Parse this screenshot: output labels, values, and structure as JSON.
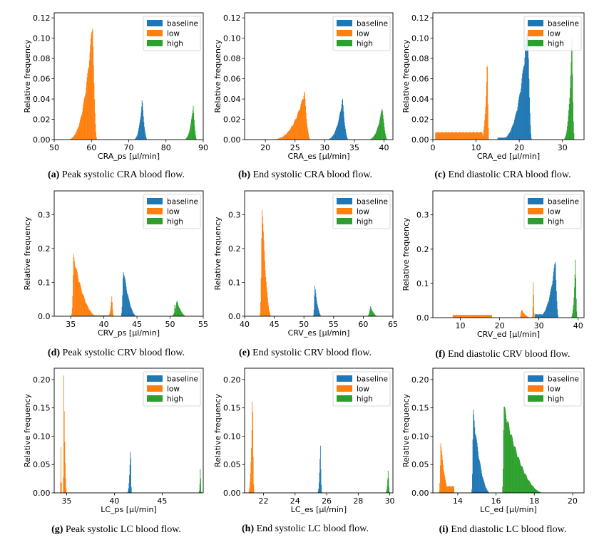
{
  "figure": {
    "legend_labels": [
      "baseline",
      "low",
      "high"
    ]
  },
  "colors": {
    "baseline": "#1f77b4",
    "low": "#ff7f0e",
    "high": "#2ca02c"
  },
  "chart_data": [
    {
      "id": "a",
      "type": "bar",
      "subtype": "histogram",
      "title": "",
      "xlabel": "CRA_ps [µl/min]",
      "ylabel": "Relative frequency",
      "caption_label": "(a)",
      "caption_text": "Peak systolic CRA blood flow.",
      "xlim": [
        50,
        90
      ],
      "ylim": [
        0,
        0.125
      ],
      "xticks": [
        50,
        60,
        70,
        80,
        90
      ],
      "yticks": [
        0.0,
        0.02,
        0.04,
        0.06,
        0.08,
        0.1,
        0.12
      ],
      "legend": "top-right",
      "series": [
        {
          "name": "baseline",
          "peaks": [
            {
              "start": 71.0,
              "center": 73.6,
              "end": 75.0,
              "height": 0.041
            }
          ]
        },
        {
          "name": "low",
          "peaks": [
            {
              "start": 53.0,
              "center": 60.3,
              "end": 61.5,
              "height": 0.122
            }
          ]
        },
        {
          "name": "high",
          "peaks": [
            {
              "start": 84.5,
              "center": 87.3,
              "end": 88.3,
              "height": 0.036
            }
          ]
        }
      ]
    },
    {
      "id": "b",
      "type": "bar",
      "subtype": "histogram",
      "title": "",
      "xlabel": "CRA_es [µl/min]",
      "ylabel": "Relative frequency",
      "caption_label": "(b)",
      "caption_text": "End systolic CRA blood flow.",
      "xlim": [
        16.5,
        41.5
      ],
      "ylim": [
        0,
        0.125
      ],
      "xticks": [
        20,
        25,
        30,
        35,
        40
      ],
      "yticks": [
        0.0,
        0.02,
        0.04,
        0.06,
        0.08,
        0.1,
        0.12
      ],
      "legend": "top-right",
      "series": [
        {
          "name": "baseline",
          "peaks": [
            {
              "start": 30.0,
              "center": 33.0,
              "end": 34.0,
              "height": 0.042
            }
          ]
        },
        {
          "name": "low",
          "peaks": [
            {
              "start": 20.5,
              "center": 26.6,
              "end": 27.6,
              "height": 0.049
            }
          ]
        },
        {
          "name": "high",
          "peaks": [
            {
              "start": 37.0,
              "center": 39.7,
              "end": 40.6,
              "height": 0.034
            }
          ]
        }
      ]
    },
    {
      "id": "c",
      "type": "bar",
      "subtype": "histogram",
      "title": "",
      "xlabel": "CRA_ed [µl/min]",
      "ylabel": "Relative frequency",
      "caption_label": "(c)",
      "caption_text": "End diastolic CRA blood flow.",
      "xlim": [
        0,
        35
      ],
      "ylim": [
        0,
        0.125
      ],
      "xticks": [
        0,
        10,
        20,
        30
      ],
      "yticks": [
        0.0,
        0.02,
        0.04,
        0.06,
        0.08,
        0.1,
        0.12
      ],
      "legend": "top-right",
      "series": [
        {
          "name": "baseline",
          "peaks": [
            {
              "start": 15.0,
              "center": 22.0,
              "end": 22.9,
              "height": 0.119
            }
          ],
          "plateau": {
            "start": 15.0,
            "end": 20.0,
            "height": 0.002
          }
        },
        {
          "name": "low",
          "peaks": [
            {
              "start": 11.0,
              "center": 12.6,
              "end": 13.0,
              "height": 0.085
            }
          ],
          "plateau": {
            "start": 0.5,
            "end": 11.5,
            "height": 0.0075
          }
        },
        {
          "name": "high",
          "peaks": [
            {
              "start": 30.0,
              "center": 32.2,
              "end": 32.8,
              "height": 0.104
            }
          ]
        }
      ]
    },
    {
      "id": "d",
      "type": "bar",
      "subtype": "histogram",
      "title": "",
      "xlabel": "CRV_ps [µl/min]",
      "ylabel": "Relative frequency",
      "caption_label": "(d)",
      "caption_text": "Peak systolic CRV blood flow.",
      "xlim": [
        32.5,
        55
      ],
      "ylim": [
        0,
        0.37
      ],
      "xticks": [
        35,
        40,
        45,
        50,
        55
      ],
      "yticks": [
        0.0,
        0.1,
        0.2,
        0.3
      ],
      "legend": "top-right",
      "series": [
        {
          "name": "baseline",
          "peaks": [
            {
              "start": 42.5,
              "center": 42.9,
              "end": 45.0,
              "height": 0.148
            }
          ]
        },
        {
          "name": "low",
          "peaks": [
            {
              "start": 35.0,
              "center": 35.4,
              "end": 39.0,
              "height": 0.185
            },
            {
              "start": 40.5,
              "center": 41.2,
              "end": 41.5,
              "height": 0.063
            }
          ],
          "plateau": {
            "start": 36.0,
            "end": 41.0,
            "height": 0.003
          }
        },
        {
          "name": "high",
          "peaks": [
            {
              "start": 50.0,
              "center": 51.0,
              "end": 52.5,
              "height": 0.048
            },
            {
              "start": 50.6,
              "center": 50.7,
              "end": 50.8,
              "height": 0.08
            }
          ]
        }
      ]
    },
    {
      "id": "e",
      "type": "bar",
      "subtype": "histogram",
      "title": "",
      "xlabel": "CRV_es [µl/min]",
      "ylabel": "Relative frequency",
      "caption_label": "(e)",
      "caption_text": "End systolic CRV blood flow.",
      "xlim": [
        40,
        65
      ],
      "ylim": [
        0,
        0.37
      ],
      "xticks": [
        40,
        45,
        50,
        55,
        60,
        65
      ],
      "yticks": [
        0.0,
        0.1,
        0.2,
        0.3
      ],
      "legend": "top-right",
      "series": [
        {
          "name": "baseline",
          "peaks": [
            {
              "start": 51.5,
              "center": 51.8,
              "end": 53.0,
              "height": 0.097
            }
          ]
        },
        {
          "name": "low",
          "peaks": [
            {
              "start": 42.5,
              "center": 42.9,
              "end": 44.5,
              "height": 0.36
            }
          ]
        },
        {
          "name": "high",
          "peaks": [
            {
              "start": 60.5,
              "center": 61.2,
              "end": 62.5,
              "height": 0.03
            }
          ]
        }
      ]
    },
    {
      "id": "f",
      "type": "bar",
      "subtype": "histogram",
      "title": "",
      "xlabel": "CRV_ed [µl/min]",
      "ylabel": "Relative frequency",
      "caption_label": "(f)",
      "caption_text": "End diastolic CRV blood flow.",
      "xlim": [
        3,
        41.5
      ],
      "ylim": [
        0,
        0.37
      ],
      "xticks": [
        10,
        20,
        30,
        40
      ],
      "yticks": [
        0.0,
        0.1,
        0.2,
        0.3
      ],
      "legend": "top-right",
      "series": [
        {
          "name": "baseline",
          "peaks": [
            {
              "start": 29.0,
              "center": 34.2,
              "end": 35.0,
              "height": 0.178
            }
          ],
          "plateau": {
            "start": 29.0,
            "end": 33.0,
            "height": 0.01
          }
        },
        {
          "name": "low",
          "peaks": [
            {
              "start": 25.0,
              "center": 25.5,
              "end": 28.0,
              "height": 0.025
            },
            {
              "start": 28.2,
              "center": 28.6,
              "end": 28.9,
              "height": 0.135
            }
          ],
          "plateau": {
            "start": 8.0,
            "end": 18.0,
            "height": 0.008
          }
        },
        {
          "name": "high",
          "peaks": [
            {
              "start": 38.0,
              "center": 39.3,
              "end": 39.8,
              "height": 0.18
            }
          ]
        }
      ]
    },
    {
      "id": "g",
      "type": "bar",
      "subtype": "histogram",
      "title": "",
      "xlabel": "LC_ps [µl/min]",
      "ylabel": "Relative frequency",
      "caption_label": "(g)",
      "caption_text": "Peak systolic LC blood flow.",
      "xlim": [
        33.7,
        49.3
      ],
      "ylim": [
        0,
        0.22
      ],
      "xticks": [
        35,
        40,
        45
      ],
      "yticks": [
        0.0,
        0.05,
        0.1,
        0.15,
        0.2
      ],
      "legend": "top-right",
      "series": [
        {
          "name": "baseline",
          "peaks": [
            {
              "start": 41.3,
              "center": 41.7,
              "end": 41.8,
              "height": 0.1
            }
          ]
        },
        {
          "name": "low",
          "peaks": [
            {
              "start": 34.3,
              "center": 34.4,
              "end": 34.5,
              "height": 0.1
            },
            {
              "start": 34.6,
              "center": 34.7,
              "end": 35.0,
              "height": 0.215
            }
          ]
        },
        {
          "name": "high",
          "peaks": [
            {
              "start": 48.8,
              "center": 49.0,
              "end": 49.1,
              "height": 0.057
            }
          ]
        }
      ]
    },
    {
      "id": "h",
      "type": "bar",
      "subtype": "histogram",
      "title": "",
      "xlabel": "LC_es [µl/min]",
      "ylabel": "Relative frequency",
      "caption_label": "(h)",
      "caption_text": "End systolic LC blood flow.",
      "xlim": [
        20.8,
        30.2
      ],
      "ylim": [
        0,
        0.22
      ],
      "xticks": [
        22,
        24,
        26,
        28,
        30
      ],
      "yticks": [
        0.0,
        0.05,
        0.1,
        0.15,
        0.2
      ],
      "legend": "top-right",
      "series": [
        {
          "name": "baseline",
          "peaks": [
            {
              "start": 25.4,
              "center": 25.6,
              "end": 25.7,
              "height": 0.097
            }
          ]
        },
        {
          "name": "low",
          "peaks": [
            {
              "start": 21.0,
              "center": 21.3,
              "end": 21.4,
              "height": 0.198
            }
          ]
        },
        {
          "name": "high",
          "peaks": [
            {
              "start": 29.7,
              "center": 29.9,
              "end": 30.0,
              "height": 0.045
            }
          ]
        }
      ]
    },
    {
      "id": "i",
      "type": "bar",
      "subtype": "histogram",
      "title": "",
      "xlabel": "LC_ed [µl/min]",
      "ylabel": "Relative frequency",
      "caption_label": "(i)",
      "caption_text": "End diastolic LC blood flow.",
      "xlim": [
        12.7,
        20.6
      ],
      "ylim": [
        0,
        0.22
      ],
      "xticks": [
        14,
        16,
        18,
        20
      ],
      "yticks": [
        0.0,
        0.05,
        0.1,
        0.15,
        0.2
      ],
      "legend": "top-right",
      "series": [
        {
          "name": "baseline",
          "peaks": [
            {
              "start": 14.7,
              "center": 14.8,
              "end": 15.7,
              "height": 0.15
            }
          ]
        },
        {
          "name": "low",
          "peaks": [
            {
              "start": 13.0,
              "center": 13.1,
              "end": 13.6,
              "height": 0.095
            },
            {
              "start": 14.5,
              "center": 15.0,
              "end": 15.3,
              "height": 0.013
            }
          ],
          "plateau": {
            "start": 13.2,
            "end": 13.8,
            "height": 0.012
          }
        },
        {
          "name": "high",
          "peaks": [
            {
              "start": 16.3,
              "center": 16.4,
              "end": 18.5,
              "height": 0.16
            }
          ]
        }
      ]
    }
  ]
}
